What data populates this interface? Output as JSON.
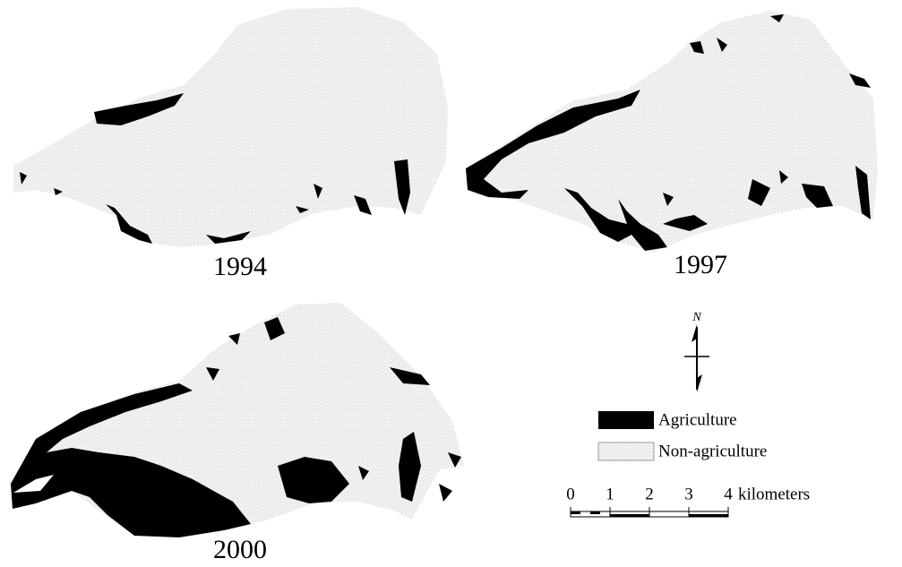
{
  "maps": [
    {
      "label": "1994"
    },
    {
      "label": "1997"
    },
    {
      "label": "2000"
    }
  ],
  "north_arrow": {
    "label": "N"
  },
  "legend": [
    {
      "label": "Agriculture"
    },
    {
      "label": "Non-agriculture"
    }
  ],
  "scale_bar": {
    "labels": [
      "0",
      "1",
      "2",
      "3",
      "4"
    ],
    "unit": "kilometers"
  }
}
